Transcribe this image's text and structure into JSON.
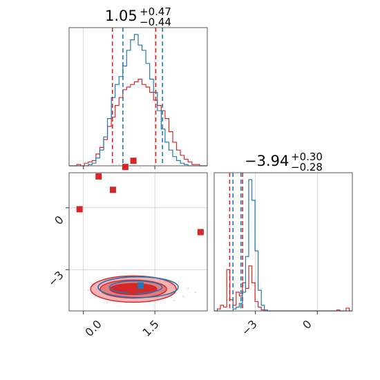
{
  "chart_data": {
    "type": "corner",
    "grid": true,
    "parameters": [
      {
        "value": "1.05",
        "err_plus": "+0.47",
        "err_minus": "−0.44",
        "range": [
          -0.3,
          2.6
        ]
      },
      {
        "value": "−3.94",
        "err_plus": "+0.30",
        "err_minus": "−0.28",
        "range": [
          -5.0,
          1.7
        ]
      }
    ],
    "ticks": {
      "param1": [
        {
          "value": 0.0,
          "label": "0.0"
        },
        {
          "value": 1.5,
          "label": "1.5"
        }
      ],
      "param2": [
        {
          "value": -3,
          "label": "−3"
        },
        {
          "value": 0,
          "label": "0"
        }
      ]
    },
    "series": [
      {
        "color": "#d62728",
        "quantile_lines": {
          "param1": [
            0.61,
            1.52
          ],
          "param2": [
            -4.25,
            -3.62
          ]
        },
        "hist_param1": [
          0,
          0,
          1,
          0,
          2,
          3,
          4,
          9,
          14,
          20,
          30,
          37,
          46,
          52,
          58,
          60,
          62,
          64,
          66,
          62,
          60,
          56,
          50,
          46,
          42,
          36,
          26,
          18,
          12,
          8,
          5,
          3,
          1,
          1,
          0,
          0
        ],
        "hist_param2": [
          0,
          2,
          6,
          4,
          44,
          12,
          6,
          20,
          16,
          30,
          24,
          48,
          30,
          10,
          4,
          1,
          0,
          0,
          0,
          0,
          0,
          0,
          0,
          0,
          0,
          0,
          0,
          0,
          0,
          0,
          0,
          0,
          0,
          0,
          0,
          0,
          0,
          0,
          0,
          1,
          0,
          0,
          3,
          0
        ],
        "points": [
          [
            -0.08,
            -0.07
          ],
          [
            0.32,
            1.52
          ],
          [
            0.62,
            0.87
          ],
          [
            0.88,
            1.98
          ],
          [
            1.05,
            2.28
          ],
          [
            2.46,
            -1.18
          ],
          [
            1.02,
            -4.02
          ]
        ]
      },
      {
        "color": "#1f77b4",
        "quantile_lines": {
          "param1": [
            0.83,
            1.66
          ],
          "param2": [
            -4.09,
            -3.7
          ]
        },
        "hist_param1": [
          0,
          0,
          0,
          0,
          0,
          1,
          2,
          6,
          12,
          22,
          36,
          52,
          62,
          68,
          76,
          88,
          96,
          100,
          92,
          88,
          78,
          66,
          56,
          42,
          28,
          18,
          12,
          7,
          4,
          2,
          1,
          0,
          0,
          0,
          0,
          0
        ],
        "hist_param2": [
          0,
          0,
          0,
          0,
          0,
          0,
          2,
          4,
          8,
          20,
          58,
          140,
          118,
          64,
          22,
          6,
          1,
          0,
          0,
          0,
          0,
          0,
          0,
          0,
          0,
          0,
          0,
          0,
          0,
          0,
          0,
          0,
          0,
          0,
          0,
          0,
          0,
          0,
          0,
          0,
          0,
          0,
          0,
          0
        ],
        "points": [
          [
            1.2,
            -3.77
          ]
        ]
      }
    ]
  }
}
